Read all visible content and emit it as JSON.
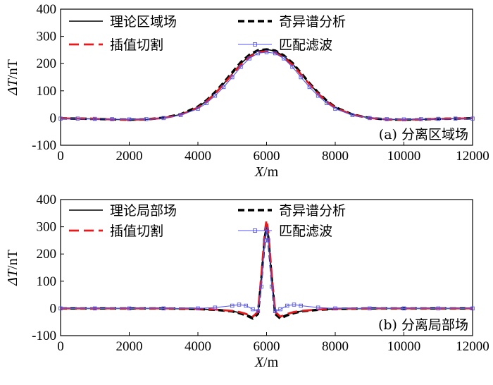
{
  "chart_data": [
    {
      "type": "line",
      "panel_label": "(a) 分离区域场",
      "xlabel_var": "X",
      "xlabel_unit": "/m",
      "ylabel_var": "ΔT",
      "ylabel_unit": "/nT",
      "xlim": [
        0,
        12000
      ],
      "ylim": [
        -100,
        400
      ],
      "xticks": [
        0,
        2000,
        4000,
        6000,
        8000,
        10000,
        12000
      ],
      "yticks": [
        -100,
        0,
        100,
        200,
        300,
        400
      ],
      "legend": [
        "理论区域场",
        "奇异谱分析",
        "插值切割",
        "匹配滤波"
      ],
      "x": [
        0,
        500,
        1000,
        1500,
        2000,
        2500,
        3000,
        3500,
        4000,
        4250,
        4500,
        4750,
        5000,
        5250,
        5500,
        5750,
        6000,
        6250,
        6500,
        6750,
        7000,
        7250,
        7500,
        7750,
        8000,
        8500,
        9000,
        9500,
        10000,
        10500,
        11000,
        11500,
        12000
      ],
      "series": [
        {
          "name": "理论区域场",
          "color": "#000000",
          "style": "solid",
          "values": [
            -1,
            -2,
            -3,
            -5,
            -6,
            -5,
            0,
            13,
            40,
            63,
            92,
            126,
            163,
            200,
            228,
            246,
            252,
            246,
            228,
            200,
            163,
            126,
            92,
            63,
            40,
            13,
            0,
            -5,
            -6,
            -5,
            -3,
            -2,
            -1
          ]
        },
        {
          "name": "奇异谱分析",
          "color": "#000000",
          "style": "dashed",
          "values": [
            -1,
            -2,
            -3,
            -5,
            -6,
            -5,
            1,
            14,
            42,
            65,
            95,
            130,
            168,
            205,
            232,
            249,
            252,
            248,
            230,
            203,
            166,
            128,
            94,
            64,
            40,
            13,
            0,
            -5,
            -6,
            -5,
            -3,
            -2,
            -1
          ]
        },
        {
          "name": "插值切割",
          "color": "#e41a1c",
          "style": "dashed",
          "values": [
            -1,
            -2,
            -3,
            -5,
            -6,
            -5,
            0,
            12,
            38,
            61,
            90,
            124,
            160,
            196,
            224,
            242,
            245,
            240,
            222,
            196,
            160,
            124,
            90,
            61,
            38,
            12,
            0,
            -5,
            -6,
            -5,
            -3,
            -2,
            -1
          ]
        },
        {
          "name": "匹配滤波",
          "color": "#5555ee",
          "style": "marker",
          "values": [
            -2,
            -2,
            -3,
            -4,
            -5,
            -4,
            0,
            11,
            34,
            55,
            82,
            114,
            150,
            188,
            219,
            238,
            242,
            238,
            219,
            188,
            150,
            114,
            82,
            55,
            34,
            11,
            0,
            -4,
            -5,
            -4,
            -3,
            -2,
            -2
          ]
        }
      ]
    },
    {
      "type": "line",
      "panel_label": "(b) 分离局部场",
      "xlabel_var": "X",
      "xlabel_unit": "/m",
      "ylabel_var": "ΔT",
      "ylabel_unit": "/nT",
      "xlim": [
        0,
        12000
      ],
      "ylim": [
        -100,
        400
      ],
      "xticks": [
        0,
        2000,
        4000,
        6000,
        8000,
        10000,
        12000
      ],
      "yticks": [
        -100,
        0,
        100,
        200,
        300,
        400
      ],
      "legend": [
        "理论局部场",
        "奇异谱分析",
        "插值切割",
        "匹配滤波"
      ],
      "x": [
        0,
        1000,
        2000,
        3000,
        4000,
        4500,
        5000,
        5200,
        5400,
        5600,
        5750,
        5850,
        5950,
        6000,
        6050,
        6150,
        6250,
        6400,
        6600,
        6800,
        7000,
        7500,
        8000,
        9000,
        10000,
        11000,
        12000
      ],
      "series": [
        {
          "name": "理论局部场",
          "color": "#000000",
          "style": "solid",
          "values": [
            0,
            0,
            0,
            0,
            -2,
            -5,
            -10,
            -15,
            -22,
            -32,
            -15,
            120,
            270,
            310,
            270,
            120,
            -15,
            -32,
            -22,
            -15,
            -10,
            -5,
            -2,
            0,
            0,
            0,
            0
          ]
        },
        {
          "name": "奇异谱分析",
          "color": "#000000",
          "style": "dashed",
          "values": [
            0,
            0,
            0,
            0,
            -2,
            -5,
            -11,
            -17,
            -25,
            -37,
            -20,
            110,
            262,
            298,
            262,
            110,
            -20,
            -37,
            -25,
            -17,
            -11,
            -5,
            -2,
            0,
            0,
            0,
            0
          ]
        },
        {
          "name": "插值切割",
          "color": "#e41a1c",
          "style": "dashed",
          "values": [
            0,
            0,
            0,
            0,
            -1,
            -4,
            -9,
            -13,
            -20,
            -30,
            -12,
            125,
            285,
            325,
            285,
            125,
            -12,
            -30,
            -20,
            -13,
            -9,
            -4,
            -1,
            0,
            0,
            0,
            0
          ]
        },
        {
          "name": "匹配滤波",
          "color": "#5555ee",
          "style": "marker",
          "values": [
            0,
            0,
            0,
            0,
            0,
            3,
            10,
            14,
            10,
            -3,
            -10,
            80,
            250,
            290,
            250,
            80,
            -10,
            -3,
            10,
            14,
            10,
            3,
            0,
            0,
            0,
            0,
            0
          ]
        }
      ]
    }
  ]
}
